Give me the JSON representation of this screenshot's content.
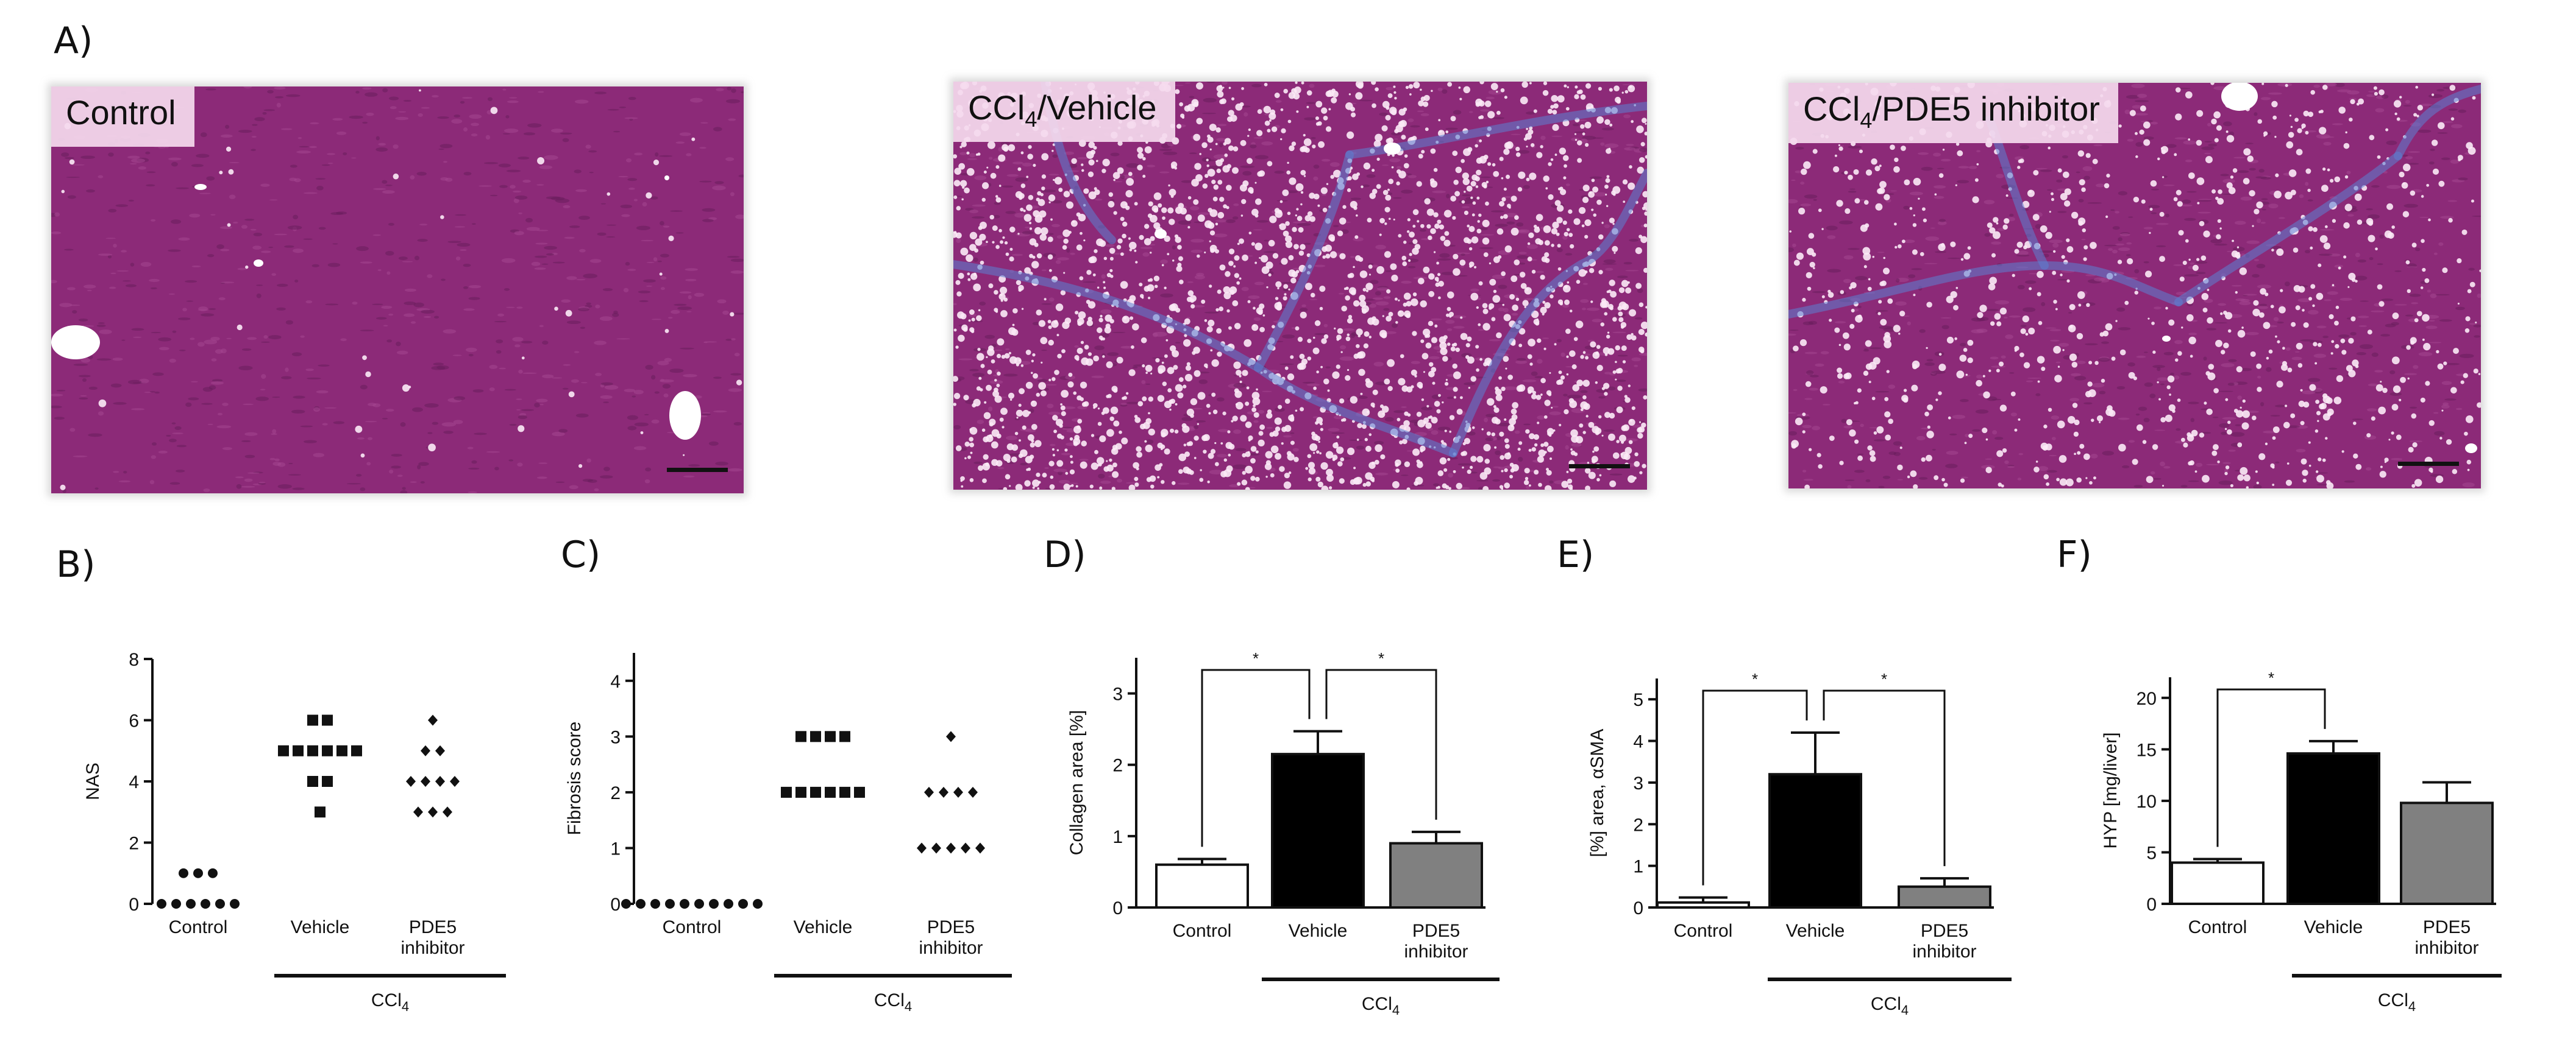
{
  "panel_labels": {
    "a": "A)",
    "b": "B)",
    "c": "C)",
    "d": "D)",
    "e": "E)",
    "f": "F)"
  },
  "micrographs": [
    {
      "label": "Control",
      "label_sub": "",
      "label_rest": ""
    },
    {
      "label": "CCl",
      "label_sub": "4",
      "label_rest": "/Vehicle"
    },
    {
      "label": "CCl",
      "label_sub": "4",
      "label_rest": "/PDE5 inhibitor"
    }
  ],
  "colors": {
    "tissue": "#8c2a78",
    "tissue_dark": "#6a1d5c",
    "fibrosis": "#5b7fd1",
    "label_bg": "#f5daee",
    "vehicle_bar": "#000000",
    "pde5_bar": "#808080",
    "control_bar": "#ffffff"
  },
  "chart_data": [
    {
      "id": "B",
      "type": "scatter",
      "ylabel": "NAS",
      "ylim": [
        0,
        8
      ],
      "yticks": [
        0,
        2,
        4,
        6,
        8
      ],
      "categories": [
        "Control",
        "Vehicle",
        "PDE5\ninhibitor"
      ],
      "group_label": "CCl",
      "group_label_sub": "4",
      "markers": [
        "circle",
        "square",
        "diamond"
      ],
      "series": [
        {
          "values": [
            0,
            0,
            0,
            0,
            0,
            0,
            1,
            1,
            1
          ]
        },
        {
          "values": [
            3,
            4,
            4,
            5,
            5,
            5,
            5,
            5,
            5,
            6,
            6
          ]
        },
        {
          "values": [
            3,
            3,
            3,
            4,
            4,
            4,
            4,
            5,
            5,
            6
          ]
        }
      ]
    },
    {
      "id": "C",
      "type": "scatter",
      "ylabel": "Fibrosis score",
      "ylim": [
        0,
        4.5
      ],
      "yticks": [
        0,
        1,
        2,
        3,
        4
      ],
      "categories": [
        "Control",
        "Vehicle",
        "PDE5\ninhibitor"
      ],
      "group_label": "CCl",
      "group_label_sub": "4",
      "markers": [
        "circle",
        "square",
        "diamond"
      ],
      "series": [
        {
          "values": [
            0,
            0,
            0,
            0,
            0,
            0,
            0,
            0,
            0,
            0
          ]
        },
        {
          "values": [
            2,
            2,
            2,
            2,
            2,
            2,
            3,
            3,
            3,
            3
          ]
        },
        {
          "values": [
            1,
            1,
            1,
            1,
            1,
            2,
            2,
            2,
            2,
            3
          ]
        }
      ]
    },
    {
      "id": "D",
      "type": "bar",
      "ylabel": "Collagen area [%]",
      "ylim": [
        0,
        3.5
      ],
      "yticks": [
        0,
        1,
        2,
        3
      ],
      "categories": [
        "Control",
        "Vehicle",
        "PDE5\ninhibitor"
      ],
      "values": [
        0.6,
        2.15,
        0.9
      ],
      "errors": [
        0.08,
        0.32,
        0.16
      ],
      "group_label": "CCl",
      "group_label_sub": "4",
      "significance": [
        {
          "from": 0,
          "to": 1,
          "label": "*"
        },
        {
          "from": 1,
          "to": 2,
          "label": "*"
        }
      ]
    },
    {
      "id": "E",
      "type": "bar",
      "ylabel": "[%] area, αSMA",
      "ylim": [
        0,
        5.5
      ],
      "yticks": [
        0,
        1,
        2,
        3,
        4,
        5
      ],
      "categories": [
        "Control",
        "Vehicle",
        "PDE5\ninhibitor"
      ],
      "values": [
        0.12,
        3.2,
        0.5
      ],
      "errors": [
        0.12,
        1.0,
        0.2
      ],
      "group_label": "CCl",
      "group_label_sub": "4",
      "significance": [
        {
          "from": 0,
          "to": 1,
          "label": "*"
        },
        {
          "from": 1,
          "to": 2,
          "label": "*"
        }
      ]
    },
    {
      "id": "F",
      "type": "bar",
      "ylabel": "HYP [mg/liver]",
      "ylim": [
        0,
        22
      ],
      "yticks": [
        0,
        5,
        10,
        15,
        20
      ],
      "categories": [
        "Control",
        "Vehicle",
        "PDE5\ninhibitor"
      ],
      "values": [
        4.0,
        14.6,
        9.8
      ],
      "errors": [
        0.35,
        1.2,
        2.0
      ],
      "group_label": "CCl",
      "group_label_sub": "4",
      "significance": [
        {
          "from": 0,
          "to": 1,
          "label": "*"
        }
      ]
    }
  ]
}
